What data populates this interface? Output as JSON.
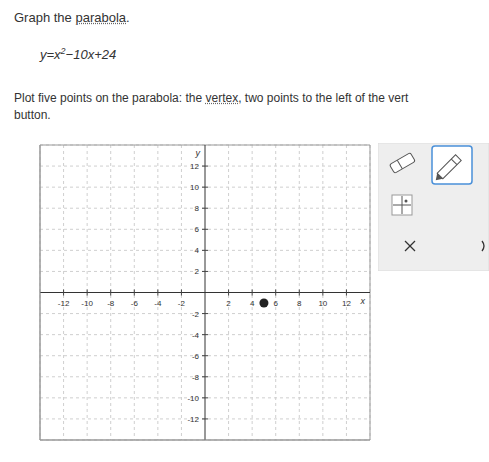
{
  "header": {
    "title": [
      {
        "text": "Graph the "
      },
      {
        "text": "parabola",
        "underline": true
      },
      {
        "text": "."
      }
    ]
  },
  "equation": {
    "base": "y=x",
    "exponent": "2",
    "rest": "−10x+24"
  },
  "instructions": [
    [
      {
        "text": "Plot five points on the parabola: the "
      },
      {
        "text": "vertex",
        "underline": true
      },
      {
        "text": ", two points to the left of the vert"
      }
    ],
    [
      {
        "text": "button."
      }
    ]
  ],
  "chart_data": {
    "type": "scatter",
    "x": [
      5
    ],
    "values": [
      -1
    ],
    "color": "#222222",
    "xlim": [
      -14,
      14
    ],
    "ylim": [
      -14,
      14
    ],
    "xticks": [
      -12,
      -10,
      -8,
      -6,
      -4,
      -2,
      2,
      4,
      6,
      8,
      10,
      12
    ],
    "yticks": [
      -12,
      -10,
      -8,
      -6,
      -4,
      -2,
      2,
      4,
      6,
      8,
      10,
      12
    ],
    "grid": true,
    "x_label": "x",
    "y_label": "y"
  }
}
